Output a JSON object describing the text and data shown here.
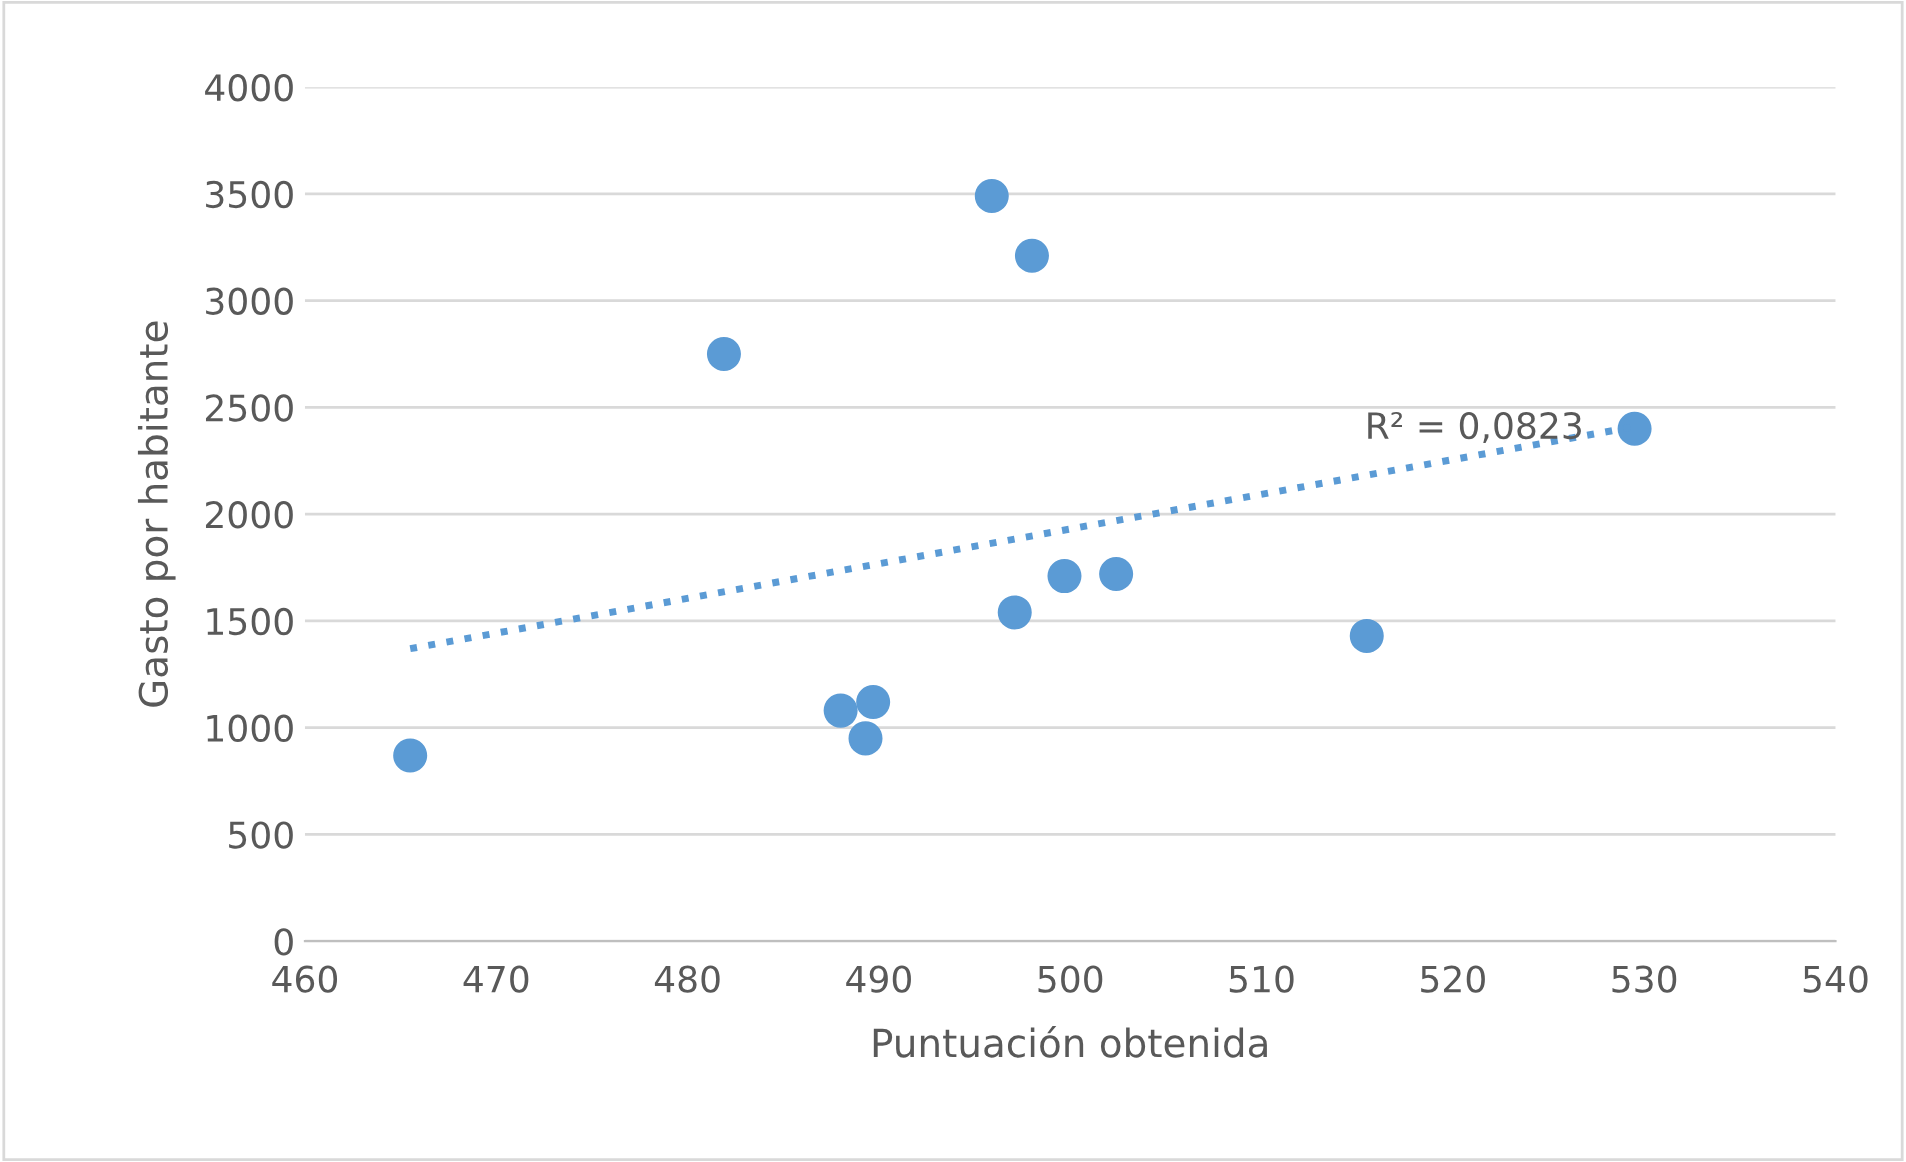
{
  "chart_data": {
    "type": "scatter",
    "xlabel": "Puntuación obtenida",
    "ylabel": "Gasto por habitante",
    "series": [
      {
        "color": "#5b9bd5",
        "x": [
          465.5,
          481.9,
          488.0,
          489.3,
          489.7,
          495.9,
          497.1,
          498.0,
          499.7,
          502.4,
          515.5,
          529.5
        ],
        "values": [
          870,
          2750,
          1080,
          950,
          1120,
          3490,
          1540,
          3210,
          1710,
          1720,
          1430,
          2400
        ]
      },
      {
        "type": "line",
        "color": "#5b9bd5",
        "line_style": "dotted",
        "marker": "none",
        "x": [
          465.5,
          529.5
        ],
        "values": [
          1370,
          2410
        ]
      }
    ],
    "annotations": [
      "R² = 0,0823"
    ],
    "marker": "circle",
    "xlim": [
      460,
      540
    ],
    "xticks": [
      460,
      470,
      480,
      490,
      500,
      510,
      520,
      530,
      540
    ],
    "ylim": [
      0,
      4000
    ],
    "yticks": [
      0,
      500,
      1000,
      1500,
      2000,
      2500,
      3000,
      3500,
      4000
    ],
    "grid": "y",
    "legend": false
  }
}
